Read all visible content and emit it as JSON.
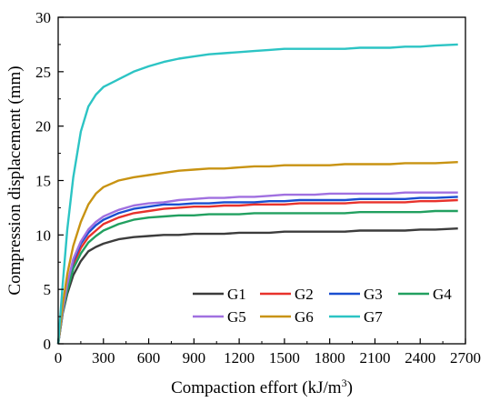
{
  "chart_data": {
    "type": "line",
    "title": "",
    "xlabel": "Compaction effort (kJ/m",
    "xlabel_sup": "3",
    "xlabel_end": ")",
    "ylabel": "Compression displacement (mm)",
    "xlim": [
      0,
      2700
    ],
    "ylim": [
      0,
      30
    ],
    "xticks": [
      "0",
      "300",
      "600",
      "900",
      "1200",
      "1500",
      "1800",
      "2100",
      "2400",
      "2700"
    ],
    "yticks": [
      "0",
      "5",
      "10",
      "15",
      "20",
      "25",
      "30"
    ],
    "grid": false,
    "legend_position": "bottom-right",
    "x": [
      0,
      30,
      60,
      100,
      150,
      200,
      250,
      300,
      400,
      500,
      600,
      700,
      800,
      900,
      1000,
      1100,
      1200,
      1300,
      1400,
      1500,
      1600,
      1700,
      1800,
      1900,
      2000,
      2100,
      2200,
      2300,
      2400,
      2500,
      2650
    ],
    "series": [
      {
        "name": "G1",
        "color": "#3c3c3c",
        "values": [
          0,
          2.8,
          4.6,
          6.3,
          7.6,
          8.5,
          8.9,
          9.2,
          9.6,
          9.8,
          9.9,
          10.0,
          10.0,
          10.1,
          10.1,
          10.1,
          10.2,
          10.2,
          10.2,
          10.3,
          10.3,
          10.3,
          10.3,
          10.3,
          10.4,
          10.4,
          10.4,
          10.4,
          10.5,
          10.5,
          10.6
        ]
      },
      {
        "name": "G2",
        "color": "#e8322c",
        "values": [
          0,
          3.0,
          5.2,
          7.3,
          8.8,
          9.8,
          10.4,
          11.0,
          11.6,
          12.0,
          12.2,
          12.4,
          12.5,
          12.6,
          12.6,
          12.7,
          12.7,
          12.8,
          12.8,
          12.8,
          12.9,
          12.9,
          12.9,
          12.9,
          13.0,
          13.0,
          13.0,
          13.0,
          13.1,
          13.1,
          13.2
        ]
      },
      {
        "name": "G3",
        "color": "#1a4fd0",
        "values": [
          0,
          3.1,
          5.4,
          7.6,
          9.2,
          10.2,
          10.9,
          11.4,
          12.0,
          12.4,
          12.6,
          12.8,
          12.8,
          12.9,
          12.9,
          13.0,
          13.0,
          13.0,
          13.1,
          13.1,
          13.2,
          13.2,
          13.2,
          13.2,
          13.3,
          13.3,
          13.3,
          13.3,
          13.4,
          13.4,
          13.5
        ]
      },
      {
        "name": "G4",
        "color": "#22a060",
        "values": [
          0,
          2.9,
          4.9,
          6.9,
          8.3,
          9.3,
          9.9,
          10.4,
          11.0,
          11.4,
          11.6,
          11.7,
          11.8,
          11.8,
          11.9,
          11.9,
          11.9,
          12.0,
          12.0,
          12.0,
          12.0,
          12.0,
          12.0,
          12.0,
          12.1,
          12.1,
          12.1,
          12.1,
          12.1,
          12.2,
          12.2
        ]
      },
      {
        "name": "G5",
        "color": "#a070e0",
        "values": [
          0,
          3.1,
          5.5,
          7.8,
          9.4,
          10.5,
          11.2,
          11.7,
          12.3,
          12.7,
          12.9,
          13.0,
          13.2,
          13.3,
          13.4,
          13.4,
          13.5,
          13.5,
          13.6,
          13.7,
          13.7,
          13.7,
          13.8,
          13.8,
          13.8,
          13.8,
          13.8,
          13.9,
          13.9,
          13.9,
          13.9
        ]
      },
      {
        "name": "G6",
        "color": "#c89312",
        "values": [
          0,
          3.6,
          6.4,
          9.0,
          11.2,
          12.8,
          13.8,
          14.4,
          15.0,
          15.3,
          15.5,
          15.7,
          15.9,
          16.0,
          16.1,
          16.1,
          16.2,
          16.3,
          16.3,
          16.4,
          16.4,
          16.4,
          16.4,
          16.5,
          16.5,
          16.5,
          16.5,
          16.6,
          16.6,
          16.6,
          16.7
        ]
      },
      {
        "name": "G7",
        "color": "#2cc4c4",
        "values": [
          0,
          5.5,
          10.5,
          15.3,
          19.5,
          21.8,
          22.9,
          23.6,
          24.3,
          25.0,
          25.5,
          25.9,
          26.2,
          26.4,
          26.6,
          26.7,
          26.8,
          26.9,
          27.0,
          27.1,
          27.1,
          27.1,
          27.1,
          27.1,
          27.2,
          27.2,
          27.2,
          27.3,
          27.3,
          27.4,
          27.5
        ]
      }
    ]
  }
}
